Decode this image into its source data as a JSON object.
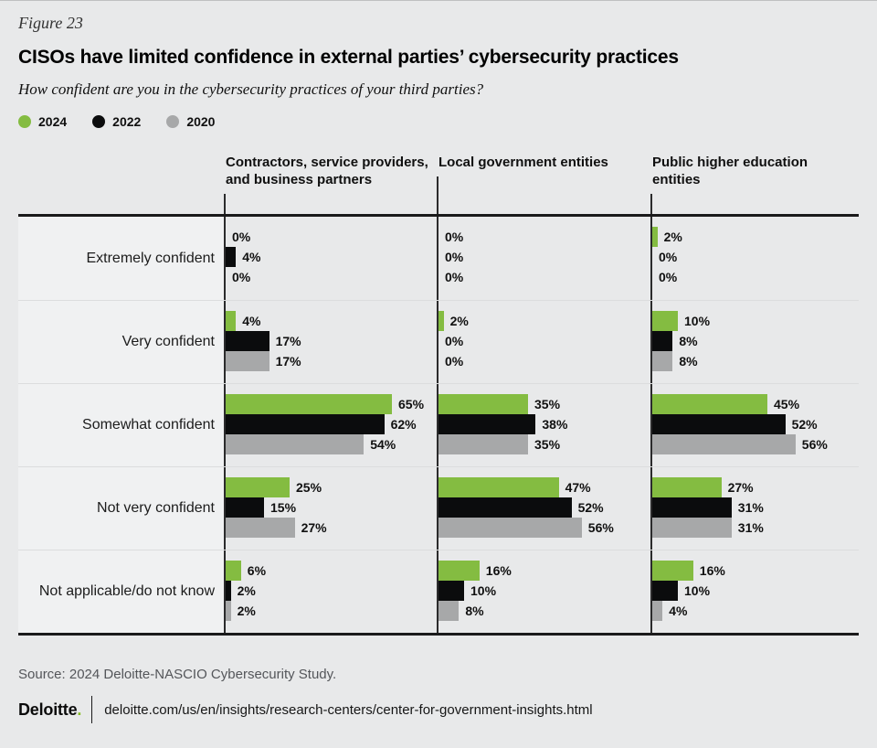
{
  "figure_label": "Figure 23",
  "title": "CISOs have limited confidence in external parties’ cybersecurity practices",
  "subtitle": "How confident are you in the cybersecurity practices of your third parties?",
  "legend": [
    {
      "label": "2024",
      "color": "#84BC41"
    },
    {
      "label": "2022",
      "color": "#0B0C0D"
    },
    {
      "label": "2020",
      "color": "#A7A8A9"
    }
  ],
  "colors": {
    "accent_green": "#84BC41",
    "series_black": "#0B0C0D",
    "series_gray": "#A7A8A9",
    "brand_green": "#86BC25",
    "page_bg": "#E8E9EA",
    "label_column_bg": "#F0F1F2"
  },
  "chart_data": {
    "type": "bar",
    "orientation": "horizontal",
    "unit": "%",
    "value_range": [
      0,
      80
    ],
    "grid": false,
    "legend_position": "top-left",
    "series": [
      "2024",
      "2022",
      "2020"
    ],
    "categories": [
      "Extremely confident",
      "Very confident",
      "Somewhat confident",
      "Not very confident",
      "Not applicable/do not know"
    ],
    "groups": [
      {
        "label": "Contractors, service providers, and business partners",
        "rows": [
          [
            0,
            4,
            0
          ],
          [
            4,
            17,
            17
          ],
          [
            65,
            62,
            54
          ],
          [
            25,
            15,
            27
          ],
          [
            6,
            2,
            2
          ]
        ]
      },
      {
        "label": "Local government entities",
        "rows": [
          [
            0,
            0,
            0
          ],
          [
            2,
            0,
            0
          ],
          [
            35,
            38,
            35
          ],
          [
            47,
            52,
            56
          ],
          [
            16,
            10,
            8
          ]
        ]
      },
      {
        "label": "Public higher education entities",
        "rows": [
          [
            2,
            0,
            0
          ],
          [
            10,
            8,
            8
          ],
          [
            45,
            52,
            56
          ],
          [
            27,
            31,
            31
          ],
          [
            16,
            10,
            4
          ]
        ]
      }
    ]
  },
  "footer": {
    "source": "Source: 2024 Deloitte-NASCIO Cybersecurity Study.",
    "brand": "Deloitte",
    "brand_dot": ".",
    "url": "deloitte.com/us/en/insights/research-centers/center-for-government-insights.html"
  }
}
